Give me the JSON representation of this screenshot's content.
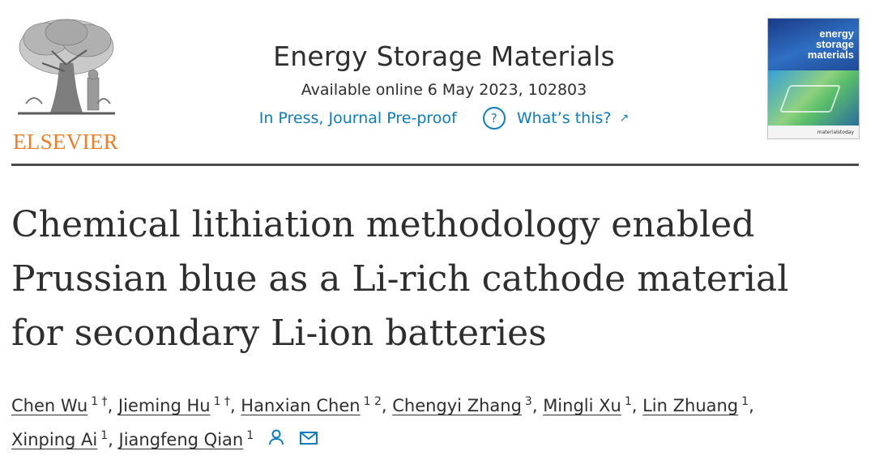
{
  "publisher": {
    "logo_text": "ELSEVIER",
    "logo_icon": "elsevier-tree-logo"
  },
  "journal": {
    "title": "Energy Storage Materials",
    "availability": "Available online 6 May 2023, 102803",
    "status": "In Press, Journal Pre-proof",
    "whats_this_label": "What’s this?",
    "help_icon": "question-circle-icon",
    "external_icon": "external-link-arrow-icon",
    "link_color": "#0c7dbb"
  },
  "cover": {
    "title": "energy storage materials",
    "footer": "materialstoday"
  },
  "article": {
    "title_lines": [
      "Chemical lithiation methodology enabled",
      "Prussian blue as a Li-rich cathode material",
      "for secondary Li-ion batteries"
    ]
  },
  "authors": [
    {
      "name": "Chen Wu",
      "sup": "1 †"
    },
    {
      "name": "Jieming Hu",
      "sup": "1 †"
    },
    {
      "name": "Hanxian Chen",
      "sup": "1 2"
    },
    {
      "name": "Chengyi Zhang",
      "sup": "3"
    },
    {
      "name": "Mingli Xu",
      "sup": "1"
    },
    {
      "name": "Lin Zhuang",
      "sup": "1"
    },
    {
      "name": "Xinping Ai",
      "sup": "1"
    },
    {
      "name": "Jiangfeng Qian",
      "sup": "1",
      "icons": [
        "person-icon",
        "envelope-icon"
      ]
    }
  ],
  "colors": {
    "elsevier_orange": "#f07e26",
    "text": "#2e2e2e"
  }
}
